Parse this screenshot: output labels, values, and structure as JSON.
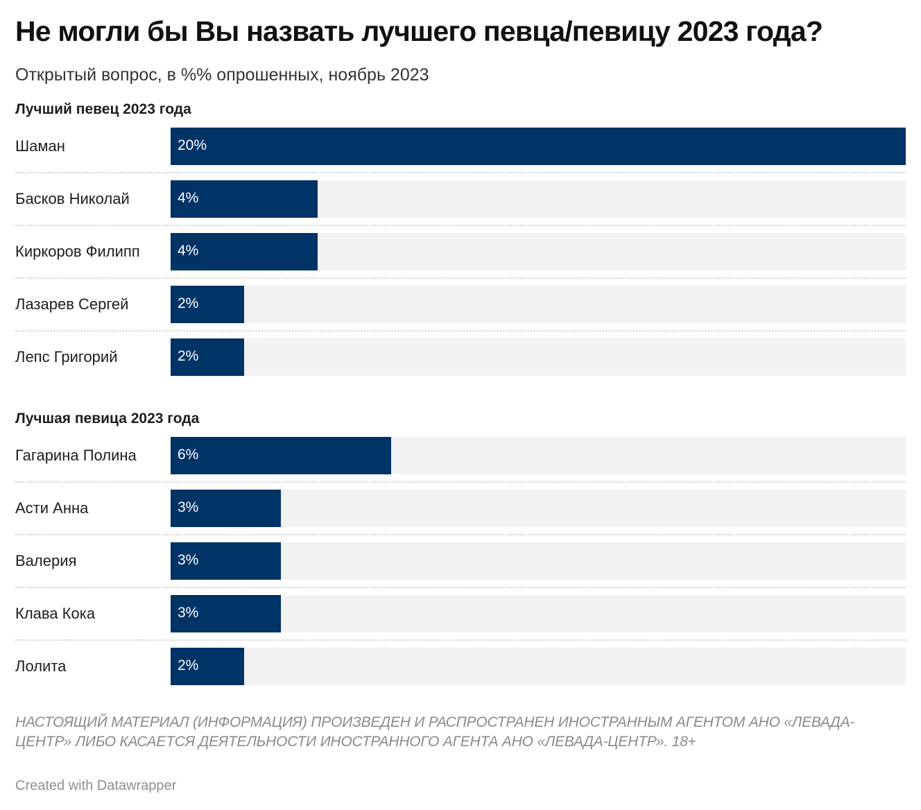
{
  "title": "Не могли бы Вы назвать лучшего певца/певицу 2023 года?",
  "subtitle": "Открытый вопрос, в %% опрошенных, ноябрь 2023",
  "colors": {
    "bar": "#003366",
    "track": "#f2f2f2",
    "value_text": "#ffffff"
  },
  "chart_data": [
    {
      "type": "bar",
      "orientation": "horizontal",
      "title": "Лучший певец 2023 года",
      "xlim": [
        0,
        20
      ],
      "categories": [
        "Шаман",
        "Басков Николай",
        "Киркоров Филипп",
        "Лазарев Сергей",
        "Лепс Григорий"
      ],
      "values": [
        20,
        4,
        4,
        2,
        2
      ],
      "value_labels": [
        "20%",
        "4%",
        "4%",
        "2%",
        "2%"
      ]
    },
    {
      "type": "bar",
      "orientation": "horizontal",
      "title": "Лучшая певица 2023 года",
      "xlim": [
        0,
        20
      ],
      "categories": [
        "Гагарина Полина",
        "Асти Анна",
        "Валерия",
        "Клава Кока",
        "Лолита"
      ],
      "values": [
        6,
        3,
        3,
        3,
        2
      ],
      "value_labels": [
        "6%",
        "3%",
        "3%",
        "3%",
        "2%"
      ]
    }
  ],
  "disclaimer": "НАСТОЯЩИЙ МАТЕРИАЛ (ИНФОРМАЦИЯ) ПРОИЗВЕДЕН И РАСПРОСТРАНЕН ИНОСТРАННЫМ АГЕНТОМ АНО «ЛЕВАДА-ЦЕНТР» ЛИБО КАСАЕТСЯ ДЕЯТЕЛЬНОСТИ ИНОСТРАННОГО АГЕНТА АНО «ЛЕВАДА-ЦЕНТР». 18+",
  "credit": "Created with Datawrapper"
}
